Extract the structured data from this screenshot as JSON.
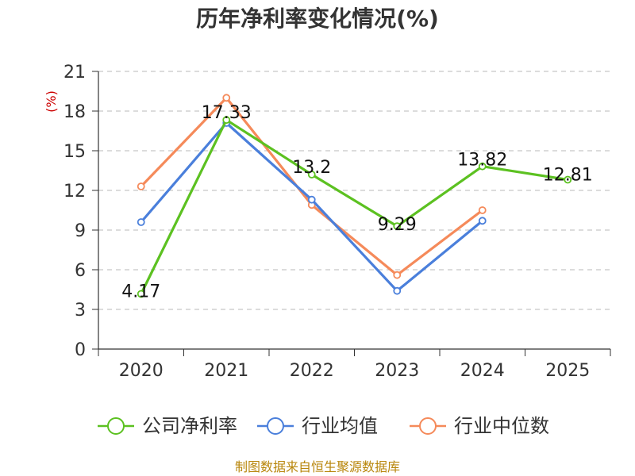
{
  "chart_data": {
    "type": "line",
    "title": "历年净利率变化情况(%)",
    "y_unit": "(%)",
    "categories": [
      "2020",
      "2021",
      "2022",
      "2023",
      "2024",
      "2025"
    ],
    "ylim": [
      0,
      21
    ],
    "yticks": [
      0,
      3,
      6,
      9,
      12,
      15,
      18,
      21
    ],
    "grid": true,
    "legend_position": "bottom",
    "series": [
      {
        "name": "公司净利率",
        "color": "#5cc121",
        "values": [
          4.17,
          17.33,
          13.2,
          9.29,
          13.82,
          12.81
        ],
        "labels": [
          "4.17",
          "17.33",
          "13.2",
          "9.29",
          "13.82",
          "12.81"
        ]
      },
      {
        "name": "行业均值",
        "color": "#4a7fdb",
        "values": [
          9.6,
          17.1,
          11.3,
          4.4,
          9.7,
          null
        ]
      },
      {
        "name": "行业中位数",
        "color": "#f58a5a",
        "values": [
          12.3,
          19.0,
          10.9,
          5.6,
          10.5,
          null
        ]
      }
    ]
  },
  "source": "制图数据来自恒生聚源数据库"
}
